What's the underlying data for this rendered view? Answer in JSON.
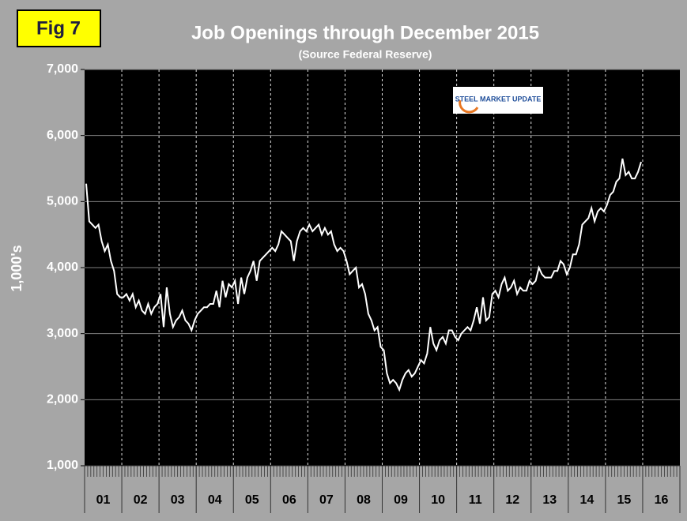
{
  "chart_data": {
    "type": "line",
    "label": "Fig 7",
    "title": "Job Openings through December 2015",
    "subtitle": "(Source Federal Reserve)",
    "ylabel": "1,000's",
    "annotation": "STEEL MARKET UPDATE",
    "color": "#ffffff",
    "grid": true,
    "categories": [
      "01",
      "02",
      "03",
      "04",
      "05",
      "06",
      "07",
      "08",
      "09",
      "10",
      "11",
      "12",
      "13",
      "14",
      "15",
      "16"
    ],
    "values": [
      [
        5270,
        4700,
        4650,
        4600,
        4650,
        4400,
        4250,
        4350,
        4100,
        3950,
        3600,
        3550
      ],
      [
        3550,
        3600,
        3500,
        3600,
        3400,
        3500,
        3350,
        3300,
        3450,
        3300,
        3400,
        3450
      ],
      [
        3600,
        3100,
        3700,
        3300,
        3100,
        3200,
        3250,
        3350,
        3200,
        3150,
        3050,
        3200
      ],
      [
        3300,
        3350,
        3400,
        3400,
        3450,
        3450,
        3650,
        3400,
        3800,
        3550,
        3750,
        3700
      ],
      [
        3800,
        3450,
        3850,
        3600,
        3850,
        3950,
        4100,
        3800,
        4100,
        4150,
        4200,
        4250
      ],
      [
        4300,
        4250,
        4350,
        4550,
        4500,
        4450,
        4400,
        4100,
        4400,
        4550,
        4600,
        4550
      ],
      [
        4650,
        4550,
        4600,
        4650,
        4500,
        4600,
        4500,
        4550,
        4350,
        4250,
        4300,
        4250
      ],
      [
        4100,
        3900,
        3950,
        4000,
        3700,
        3750,
        3600,
        3300,
        3200,
        3050,
        3100,
        2800
      ],
      [
        2750,
        2400,
        2250,
        2300,
        2250,
        2150,
        2300,
        2400,
        2450,
        2350,
        2400,
        2500
      ],
      [
        2600,
        2550,
        2700,
        3100,
        2850,
        2750,
        2900,
        2950,
        2850,
        3050,
        3050,
        2950
      ],
      [
        2900,
        3000,
        3050,
        3100,
        3050,
        3200,
        3400,
        3150,
        3550,
        3200,
        3250,
        3600
      ],
      [
        3650,
        3550,
        3750,
        3850,
        3650,
        3700,
        3800,
        3600,
        3700,
        3650,
        3650,
        3800
      ],
      [
        3750,
        3800,
        4000,
        3900,
        3850,
        3850,
        3850,
        3950,
        3950,
        4100,
        4050,
        3900
      ],
      [
        4000,
        4200,
        4200,
        4350,
        4650,
        4700,
        4750,
        4900,
        4700,
        4850,
        4900,
        4850
      ],
      [
        4950,
        5100,
        5150,
        5300,
        5350,
        5650,
        5400,
        5450,
        5350,
        5350,
        5450,
        5600
      ],
      []
    ],
    "ylim": [
      1000,
      7000
    ],
    "yticks": [
      {
        "value": 1000,
        "label": "1,000"
      },
      {
        "value": 2000,
        "label": "2,000"
      },
      {
        "value": 3000,
        "label": "3,000"
      },
      {
        "value": 4000,
        "label": "4,000"
      },
      {
        "value": 5000,
        "label": "5,000"
      },
      {
        "value": 6000,
        "label": "6,000"
      },
      {
        "value": 7000,
        "label": "7,000"
      }
    ]
  }
}
